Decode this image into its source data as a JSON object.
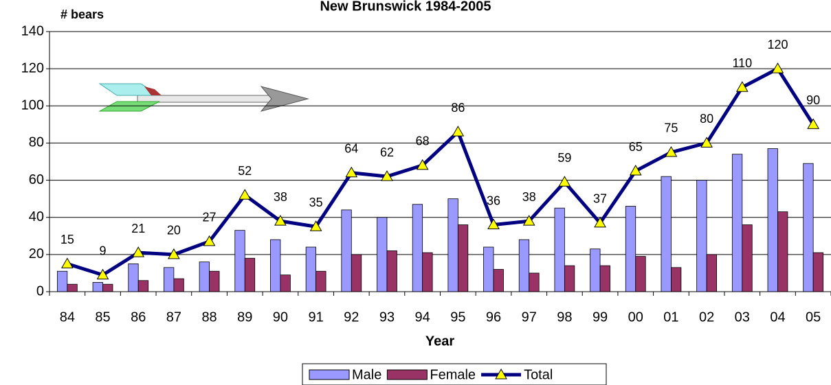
{
  "chart_data": {
    "type": "bar_line",
    "title": "New Brunswick 1984-2005",
    "y_label": "# bears",
    "x_label": "Year",
    "categories": [
      "84",
      "85",
      "86",
      "87",
      "88",
      "89",
      "90",
      "91",
      "92",
      "93",
      "94",
      "95",
      "96",
      "97",
      "98",
      "99",
      "00",
      "01",
      "02",
      "03",
      "04",
      "05"
    ],
    "series": [
      {
        "name": "Male",
        "type": "bar",
        "color": "#9999ff",
        "values": [
          11,
          5,
          15,
          13,
          16,
          33,
          28,
          24,
          44,
          40,
          47,
          50,
          24,
          28,
          45,
          23,
          46,
          62,
          60,
          74,
          77,
          69
        ]
      },
      {
        "name": "Female",
        "type": "bar",
        "color": "#993366",
        "values": [
          4,
          4,
          6,
          7,
          11,
          18,
          9,
          11,
          20,
          22,
          21,
          36,
          12,
          10,
          14,
          14,
          19,
          13,
          20,
          36,
          43,
          21
        ]
      },
      {
        "name": "Total",
        "type": "line",
        "color": "#000080",
        "marker_color": "#ffff00",
        "values": [
          15,
          9,
          21,
          20,
          27,
          52,
          38,
          35,
          64,
          62,
          68,
          86,
          36,
          38,
          59,
          37,
          65,
          75,
          80,
          110,
          120,
          90
        ]
      }
    ],
    "ylim": [
      0,
      140
    ],
    "yticks": [
      0,
      20,
      40,
      60,
      80,
      100,
      120,
      140
    ],
    "grid": true,
    "legend": "bottom"
  }
}
